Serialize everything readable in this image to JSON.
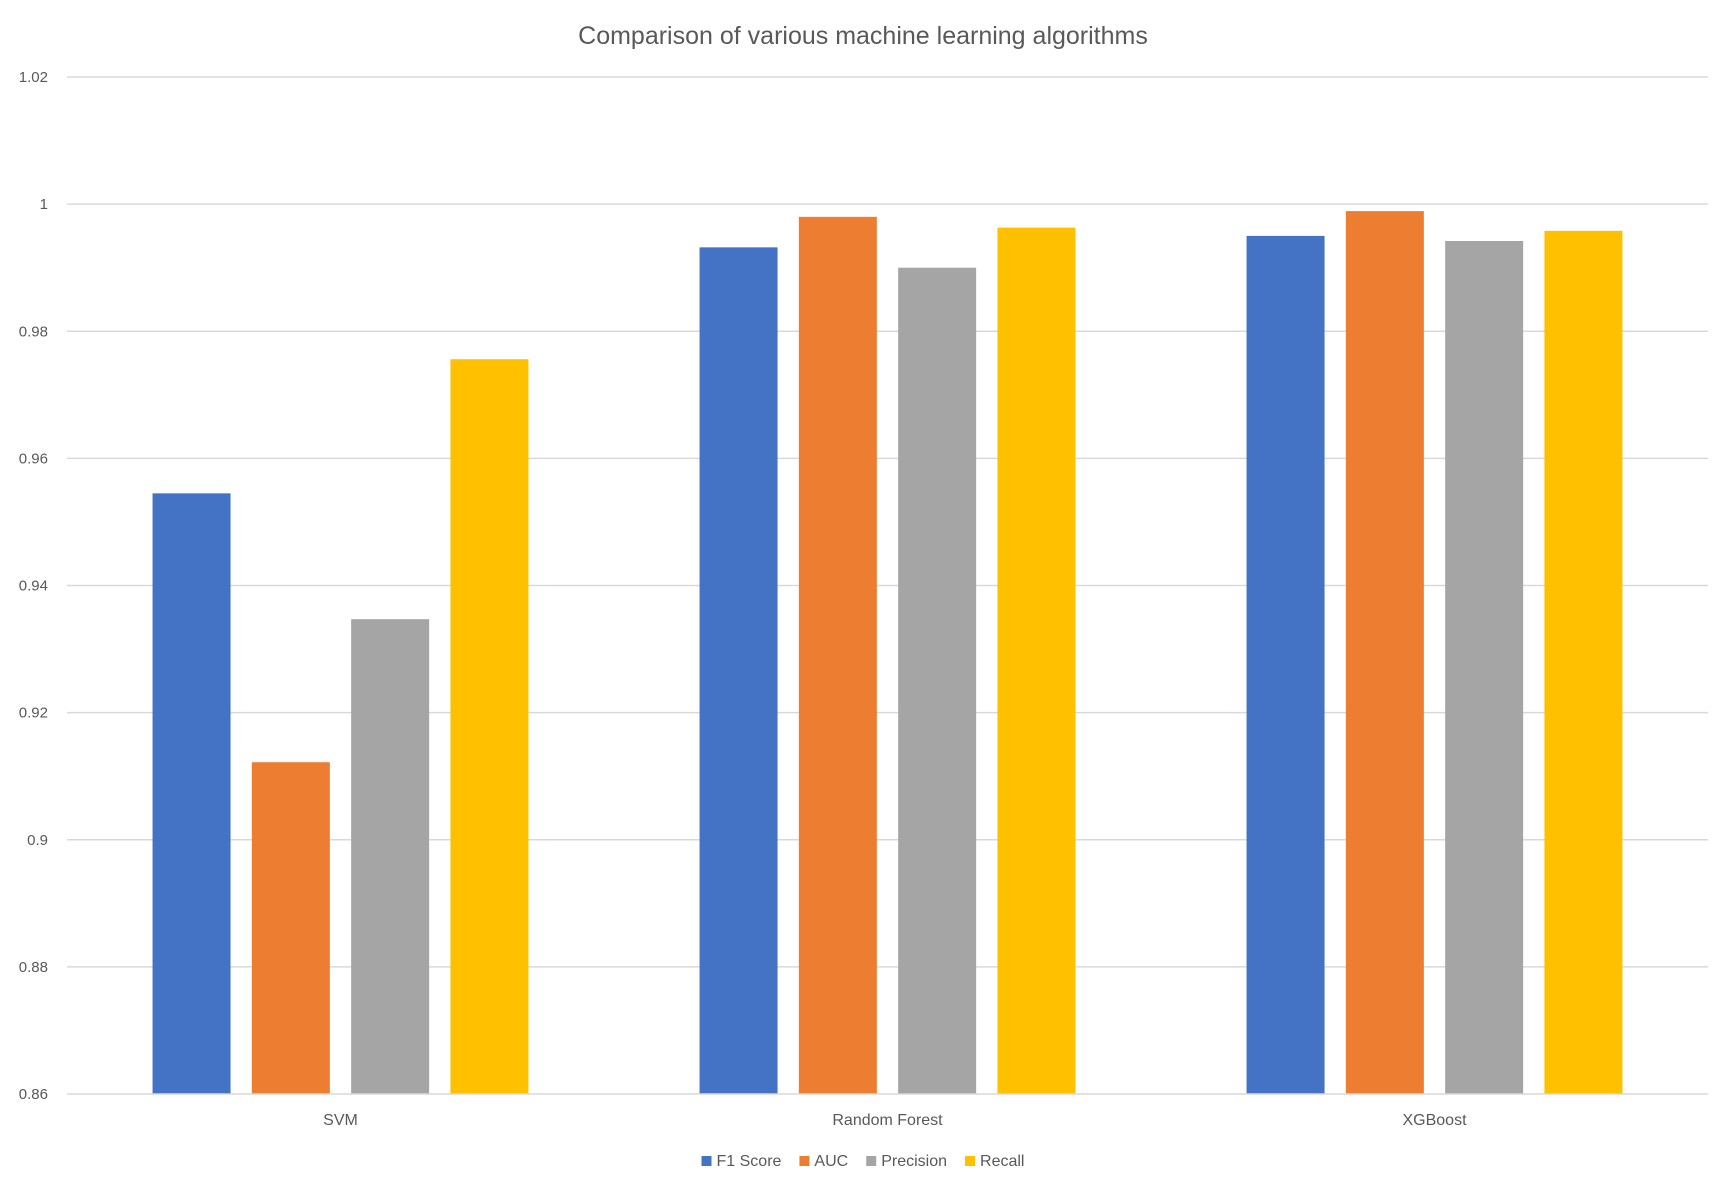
{
  "chart_data": {
    "type": "bar",
    "title": "Comparison of various machine learning algorithms",
    "xlabel": "",
    "ylabel": "",
    "categories": [
      "SVM",
      "Random Forest",
      "XGBoost"
    ],
    "series": [
      {
        "name": "F1 Score",
        "color": "#4472C4",
        "values": [
          0.9545,
          0.9932,
          0.995
        ]
      },
      {
        "name": "AUC",
        "color": "#ED7D31",
        "values": [
          0.9122,
          0.998,
          0.9989
        ]
      },
      {
        "name": "Precision",
        "color": "#A5A5A5",
        "values": [
          0.9347,
          0.99,
          0.9942
        ]
      },
      {
        "name": "Recall",
        "color": "#FFC000",
        "values": [
          0.9756,
          0.9963,
          0.9958
        ]
      }
    ],
    "ylim": [
      0.86,
      1.02
    ],
    "yticks": [
      "0.86",
      "0.88",
      "0.9",
      "0.92",
      "0.94",
      "0.96",
      "0.98",
      "1",
      "1.02"
    ],
    "grid": true,
    "legend_position": "bottom"
  }
}
